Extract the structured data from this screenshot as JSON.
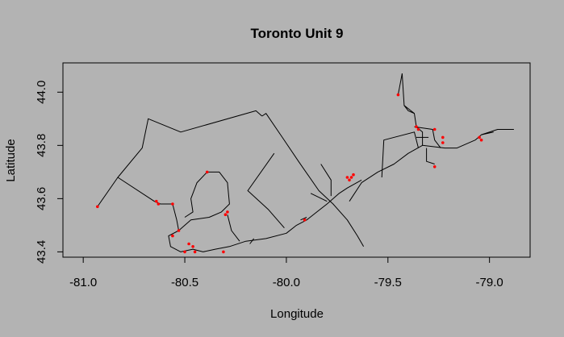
{
  "chart_data": {
    "type": "line",
    "title": "Toronto Unit 9",
    "xlabel": "Longitude",
    "ylabel": "Latitude",
    "xlim": [
      -81.1,
      -78.8
    ],
    "ylim": [
      43.38,
      44.11
    ],
    "xticks": [
      -81.0,
      -80.5,
      -80.0,
      -79.5,
      -79.0
    ],
    "xtick_labels": [
      "-81.0",
      "-80.5",
      "-80.0",
      "-79.5",
      "-79.0"
    ],
    "yticks": [
      43.4,
      43.6,
      43.8,
      44.0
    ],
    "ytick_labels": [
      "43.4",
      "43.6",
      "43.8",
      "44.0"
    ],
    "grid": false,
    "line_color": "#000000",
    "point_color": "#ff0000",
    "routes": [
      [
        [
          -80.93,
          43.57
        ],
        [
          -80.83,
          43.68
        ],
        [
          -80.65,
          43.59
        ],
        [
          -80.62,
          43.58
        ],
        [
          -80.58,
          43.58
        ],
        [
          -80.56,
          43.58
        ]
      ],
      [
        [
          -80.83,
          43.68
        ],
        [
          -80.71,
          43.79
        ],
        [
          -80.68,
          43.9
        ],
        [
          -80.52,
          43.85
        ],
        [
          -80.15,
          43.93
        ],
        [
          -80.12,
          43.91
        ]
      ],
      [
        [
          -80.12,
          43.91
        ],
        [
          -80.1,
          43.92
        ],
        [
          -80.02,
          43.83
        ],
        [
          -79.94,
          43.74
        ],
        [
          -79.84,
          43.63
        ],
        [
          -79.77,
          43.58
        ],
        [
          -79.7,
          43.52
        ],
        [
          -79.65,
          43.46
        ],
        [
          -79.62,
          43.42
        ]
      ],
      [
        [
          -79.69,
          43.59
        ],
        [
          -79.63,
          43.66
        ],
        [
          -79.55,
          43.7
        ],
        [
          -79.47,
          43.73
        ],
        [
          -79.4,
          43.77
        ],
        [
          -79.33,
          43.8
        ],
        [
          -79.22,
          43.79
        ],
        [
          -79.16,
          43.79
        ],
        [
          -79.07,
          43.82
        ],
        [
          -79.04,
          43.84
        ],
        [
          -78.96,
          43.86
        ],
        [
          -78.9,
          43.86
        ],
        [
          -78.88,
          43.86
        ]
      ],
      [
        [
          -79.43,
          44.07
        ],
        [
          -79.42,
          43.95
        ],
        [
          -79.37,
          43.92
        ],
        [
          -79.36,
          43.87
        ],
        [
          -79.33,
          43.85
        ],
        [
          -79.33,
          43.8
        ]
      ],
      [
        [
          -79.43,
          44.07
        ],
        [
          -79.45,
          43.99
        ]
      ],
      [
        [
          -79.42,
          43.95
        ],
        [
          -79.4,
          43.93
        ],
        [
          -79.37,
          43.92
        ]
      ],
      [
        [
          -80.56,
          43.58
        ],
        [
          -80.54,
          43.52
        ],
        [
          -80.53,
          43.48
        ],
        [
          -80.58,
          43.46
        ],
        [
          -80.57,
          43.42
        ],
        [
          -80.52,
          43.4
        ],
        [
          -80.46,
          43.41
        ],
        [
          -80.41,
          43.4
        ],
        [
          -80.35,
          43.41
        ],
        [
          -80.28,
          43.42
        ],
        [
          -80.2,
          43.44
        ],
        [
          -80.1,
          43.45
        ],
        [
          -80.0,
          43.47
        ],
        [
          -79.95,
          43.5
        ],
        [
          -79.9,
          43.52
        ],
        [
          -79.85,
          43.55
        ],
        [
          -79.8,
          43.58
        ],
        [
          -79.74,
          43.62
        ],
        [
          -79.7,
          43.64
        ],
        [
          -79.63,
          43.67
        ]
      ],
      [
        [
          -80.53,
          43.48
        ],
        [
          -80.47,
          43.52
        ],
        [
          -80.38,
          43.53
        ],
        [
          -80.32,
          43.55
        ],
        [
          -80.28,
          43.58
        ],
        [
          -80.29,
          43.66
        ],
        [
          -80.33,
          43.7
        ],
        [
          -80.39,
          43.7
        ],
        [
          -80.44,
          43.66
        ],
        [
          -80.47,
          43.6
        ],
        [
          -80.46,
          43.55
        ],
        [
          -80.5,
          43.53
        ]
      ],
      [
        [
          -80.29,
          43.54
        ],
        [
          -80.27,
          43.48
        ],
        [
          -80.23,
          43.44
        ]
      ],
      [
        [
          -80.06,
          43.77
        ],
        [
          -80.19,
          43.63
        ],
        [
          -80.09,
          43.56
        ],
        [
          -80.01,
          43.49
        ]
      ],
      [
        [
          -79.83,
          43.73
        ],
        [
          -79.78,
          43.67
        ],
        [
          -79.78,
          43.61
        ]
      ],
      [
        [
          -79.88,
          43.62
        ],
        [
          -79.8,
          43.59
        ]
      ],
      [
        [
          -79.53,
          43.68
        ],
        [
          -79.52,
          43.82
        ],
        [
          -79.37,
          43.85
        ],
        [
          -79.35,
          43.79
        ]
      ],
      [
        [
          -79.37,
          43.87
        ],
        [
          -79.28,
          43.86
        ],
        [
          -79.27,
          43.82
        ],
        [
          -79.24,
          43.79
        ]
      ],
      [
        [
          -79.36,
          43.83
        ],
        [
          -79.3,
          43.83
        ]
      ],
      [
        [
          -79.31,
          43.79
        ],
        [
          -79.31,
          43.74
        ],
        [
          -79.27,
          43.73
        ]
      ],
      [
        [
          -80.18,
          43.43
        ],
        [
          -80.16,
          43.45
        ]
      ],
      [
        [
          -79.93,
          43.52
        ],
        [
          -79.9,
          43.53
        ]
      ],
      [
        [
          -79.04,
          43.84
        ],
        [
          -78.98,
          43.85
        ]
      ]
    ],
    "points": [
      [
        -80.93,
        43.57
      ],
      [
        -80.64,
        43.59
      ],
      [
        -80.63,
        43.58
      ],
      [
        -80.56,
        43.58
      ],
      [
        -80.39,
        43.7
      ],
      [
        -80.29,
        43.55
      ],
      [
        -80.3,
        43.54
      ],
      [
        -80.53,
        43.48
      ],
      [
        -80.56,
        43.46
      ],
      [
        -80.48,
        43.43
      ],
      [
        -80.46,
        43.42
      ],
      [
        -80.5,
        43.4
      ],
      [
        -80.45,
        43.4
      ],
      [
        -80.31,
        43.4
      ],
      [
        -79.91,
        43.52
      ],
      [
        -79.69,
        43.67
      ],
      [
        -79.68,
        43.68
      ],
      [
        -79.67,
        43.69
      ],
      [
        -79.7,
        43.68
      ],
      [
        -79.45,
        43.99
      ],
      [
        -79.36,
        43.87
      ],
      [
        -79.35,
        43.86
      ],
      [
        -79.27,
        43.86
      ],
      [
        -79.23,
        43.83
      ],
      [
        -79.23,
        43.81
      ],
      [
        -79.27,
        43.72
      ],
      [
        -79.05,
        43.83
      ],
      [
        -79.04,
        43.82
      ]
    ]
  }
}
